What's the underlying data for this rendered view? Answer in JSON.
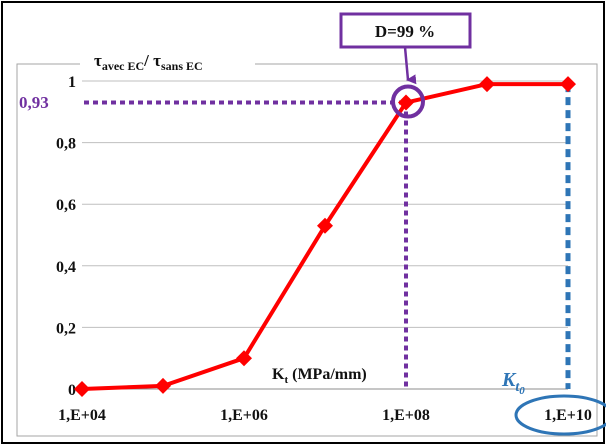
{
  "chart_data": {
    "type": "line",
    "x_scale": "log",
    "x": [
      10000,
      100000,
      1000000,
      10000000,
      100000000,
      1000000000,
      10000000000
    ],
    "series": [
      {
        "values": [
          0.0,
          0.01,
          0.1,
          0.53,
          0.93,
          0.99,
          0.99
        ]
      }
    ],
    "xlim": [
      10000,
      10000000000
    ],
    "ylim": [
      0,
      1
    ],
    "x_ticks": [
      10000,
      1000000,
      100000000,
      10000000000
    ],
    "x_tick_labels": [
      "1,E+04",
      "1,E+06",
      "1,E+08",
      "1,E+10"
    ],
    "y_ticks": [
      0,
      0.2,
      0.4,
      0.6,
      0.8,
      1
    ],
    "y_tick_labels": [
      "0",
      "0,2",
      "0,4",
      "0,6",
      "0,8",
      "1"
    ],
    "grid": true,
    "ylabel": {
      "tau": "τ",
      "sub_num": "avec EC",
      "slash": "/ ",
      "tau2": "τ",
      "sub_den": "sans EC"
    },
    "xlabel": {
      "main": "K",
      "sub": "t",
      "unit": " (MPa/mm)"
    },
    "colors": {
      "series": "#ff0000",
      "highlight": "#7030a0",
      "kt0": "#2e75b6",
      "grid": "#bfbfbf",
      "frame": "#000000",
      "plot_border": "#a6a6a6"
    },
    "annotations": {
      "highlight_value": 0.93,
      "highlight_value_label": "0,93",
      "highlight_x": 100000000,
      "d_label": "D=99 %",
      "kt0_x": 10000000000,
      "kt0_label": {
        "main": "K",
        "sub": "t",
        "sub2": "0"
      }
    }
  }
}
